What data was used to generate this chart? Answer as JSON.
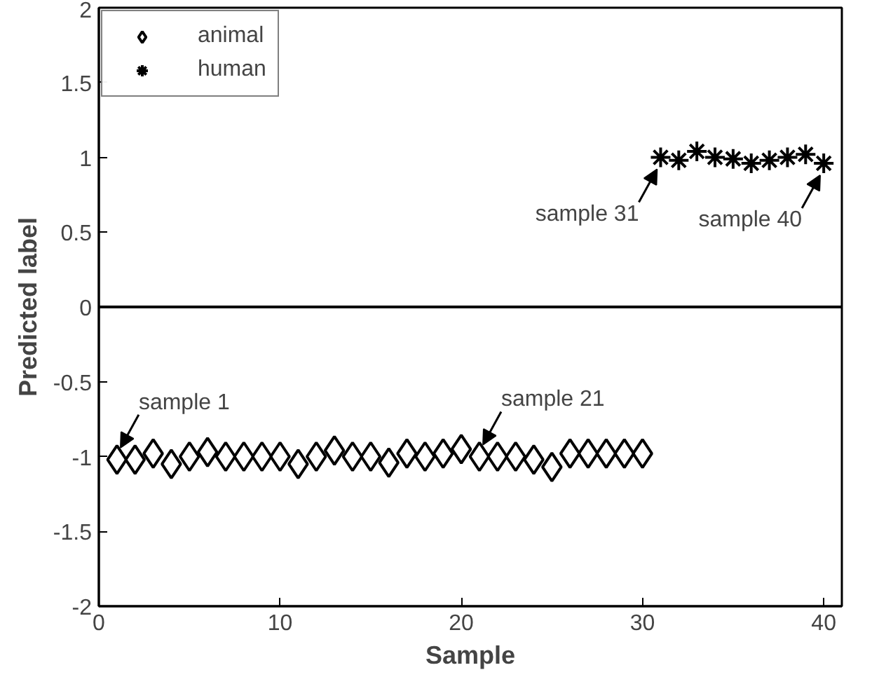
{
  "chart_data": {
    "type": "scatter",
    "xlabel": "Sample",
    "ylabel": "Predicted label",
    "xlim": [
      0,
      41
    ],
    "ylim": [
      -2,
      2
    ],
    "xticks": [
      0,
      10,
      20,
      30,
      40
    ],
    "yticks": [
      -2,
      -1.5,
      -1,
      -0.5,
      0,
      0.5,
      1,
      1.5,
      2
    ],
    "grid": false,
    "legend": "top left",
    "series": [
      {
        "name": "animal",
        "color": "#000000",
        "marker": "diamond",
        "x": [
          1,
          2,
          3,
          4,
          5,
          6,
          7,
          8,
          9,
          10,
          11,
          12,
          13,
          14,
          15,
          16,
          17,
          18,
          19,
          20,
          21,
          22,
          23,
          24,
          25,
          26,
          27,
          28,
          29,
          30
        ],
        "values": [
          -1.02,
          -1.02,
          -0.98,
          -1.05,
          -1.0,
          -0.97,
          -1.0,
          -1.0,
          -1.0,
          -1.0,
          -1.05,
          -1.0,
          -0.96,
          -1.0,
          -1.0,
          -1.04,
          -0.98,
          -1.0,
          -0.98,
          -0.95,
          -1.0,
          -1.0,
          -1.0,
          -1.02,
          -1.07,
          -0.98,
          -0.98,
          -0.98,
          -0.98,
          -0.98
        ]
      },
      {
        "name": "human",
        "color": "#000000",
        "marker": "cross",
        "x": [
          31,
          32,
          33,
          34,
          35,
          36,
          37,
          38,
          39,
          40
        ],
        "values": [
          1.0,
          0.98,
          1.04,
          1.0,
          0.99,
          0.96,
          0.98,
          1.0,
          1.02,
          0.96
        ]
      }
    ],
    "ref_lines": [
      {
        "axis": "y",
        "value": 0,
        "color": "#000000"
      }
    ],
    "annotations": [
      {
        "text": "sample 1",
        "x": 1,
        "y": -1.02
      },
      {
        "text": "sample 21",
        "x": 21,
        "y": -1.0
      },
      {
        "text": "sample 31",
        "x": 31,
        "y": 1.0
      },
      {
        "text": "sample 40",
        "x": 40,
        "y": 0.96
      }
    ]
  }
}
